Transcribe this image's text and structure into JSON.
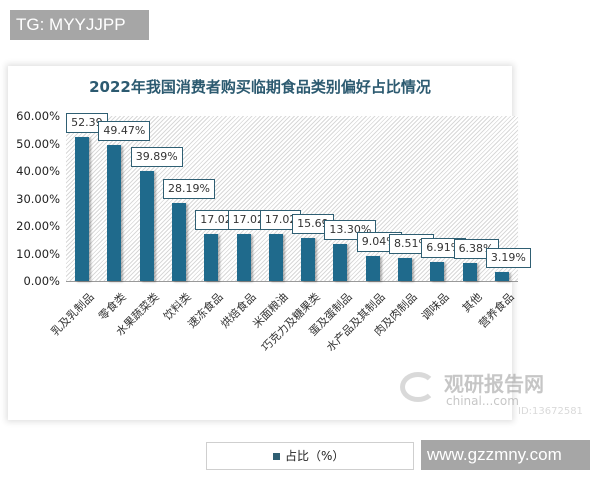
{
  "watermarks": {
    "top": "TG: MYYJJPP",
    "bottom": "www.gzzmny.com"
  },
  "logo": {
    "cn": "观研报告网",
    "en": "chinal...com",
    "id": "ID:13672581"
  },
  "legend": {
    "label": "占比（%）",
    "color": "#1f6a8c"
  },
  "y_ticks": [
    "60.00%",
    "50.00%",
    "40.00%",
    "30.00%",
    "20.00%",
    "10.00%",
    "0.00%"
  ],
  "chart_data": {
    "type": "bar",
    "title": "2022年我国消费者购买临期食品类别偏好占比情况",
    "xlabel": "",
    "ylabel": "",
    "ylim": [
      0,
      60
    ],
    "grid": false,
    "legend_position": "bottom",
    "categories": [
      "乳及乳制品",
      "零食类",
      "水果蔬菜类",
      "饮料类",
      "速冻食品",
      "烘焙食品",
      "米面粮油",
      "巧克力及糖果类",
      "蛋及蛋制品",
      "水产品及其制品",
      "肉及肉制品",
      "调味品",
      "其他",
      "营养食品"
    ],
    "series": [
      {
        "name": "占比（%）",
        "values": [
          52.39,
          49.47,
          39.89,
          28.19,
          17.02,
          17.02,
          17.02,
          15.69,
          13.3,
          9.04,
          8.51,
          6.91,
          6.38,
          3.19
        ]
      }
    ],
    "data_labels": [
      "52.39",
      "49.47%",
      "39.89%",
      "28.19%",
      "17.02",
      "17.02",
      "17.02",
      "15.69",
      "13.30%",
      "9.04%",
      "8.51%",
      "6.91%",
      "6.38%",
      "3.19%"
    ]
  }
}
